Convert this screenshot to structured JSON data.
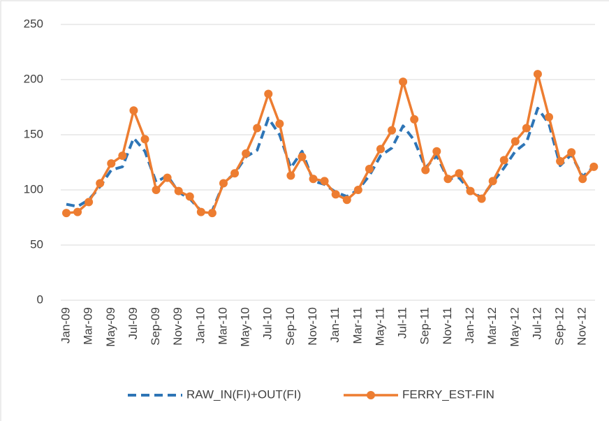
{
  "chart_data": {
    "type": "line",
    "categories": [
      "Jan-09",
      null,
      "Mar-09",
      null,
      "May-09",
      null,
      "Jul-09",
      null,
      "Sep-09",
      null,
      "Nov-09",
      null,
      "Jan-10",
      null,
      "Mar-10",
      null,
      "May-10",
      null,
      "Jul-10",
      null,
      "Sep-10",
      null,
      "Nov-10",
      null,
      "Jan-11",
      null,
      "Mar-11",
      null,
      "May-11",
      null,
      "Jul-11",
      null,
      "Sep-11",
      null,
      "Nov-11",
      null,
      "Jan-12",
      null,
      "Mar-12",
      null,
      "May-12",
      null,
      "Jul-12",
      null,
      "Sep-12",
      null,
      "Nov-12",
      null
    ],
    "series": [
      {
        "name": "RAW_IN(FI)+OUT(FI)",
        "color": "#2e75b6",
        "dashed": true,
        "values": [
          87,
          85,
          91,
          103,
          118,
          121,
          147,
          135,
          107,
          113,
          98,
          92,
          81,
          81,
          106,
          115,
          130,
          136,
          165,
          150,
          120,
          135,
          108,
          105,
          98,
          94,
          100,
          113,
          131,
          138,
          158,
          145,
          120,
          131,
          110,
          111,
          99,
          93,
          107,
          120,
          135,
          143,
          174,
          160,
          122,
          132,
          112,
          121
        ]
      },
      {
        "name": "FERRY_EST-FIN",
        "color": "#ed7d31",
        "markers": true,
        "values": [
          79,
          80,
          89,
          106,
          124,
          131,
          172,
          146,
          100,
          111,
          99,
          94,
          80,
          79,
          106,
          115,
          133,
          156,
          187,
          160,
          113,
          130,
          110,
          108,
          96,
          91,
          100,
          119,
          137,
          154,
          198,
          164,
          118,
          135,
          110,
          115,
          99,
          92,
          108,
          127,
          144,
          156,
          205,
          166,
          126,
          134,
          110,
          121
        ]
      }
    ],
    "ylim": [
      0,
      250
    ],
    "yticks": [
      0,
      50,
      100,
      150,
      200,
      250
    ],
    "grid": true,
    "legend": "bottom"
  }
}
